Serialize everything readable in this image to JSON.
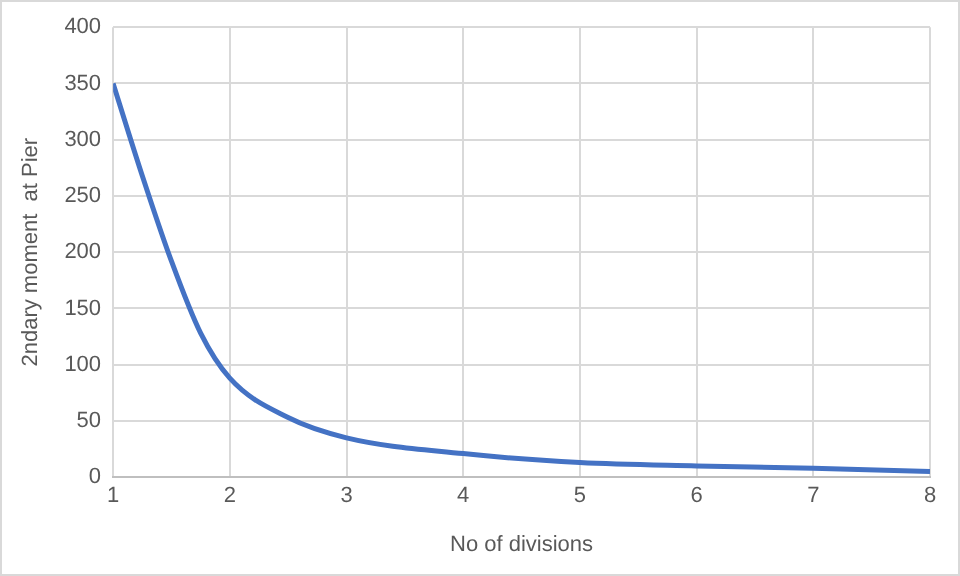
{
  "chart_data": {
    "type": "line",
    "xlabel": "No of divisions",
    "ylabel": "2ndary moment  at Pier",
    "x": [
      1,
      1.25,
      1.5,
      1.75,
      2,
      2.5,
      3,
      4,
      5,
      6,
      7,
      8
    ],
    "series": [
      {
        "color": "#4472c4",
        "values": [
          350,
          268,
          192,
          128,
          88,
          53,
          35,
          21,
          13,
          10,
          8,
          5
        ]
      }
    ],
    "xlim": [
      1,
      8
    ],
    "xticks": [
      1,
      2,
      3,
      4,
      5,
      6,
      7,
      8
    ],
    "ylim": [
      0,
      400
    ],
    "yticks": [
      0,
      50,
      100,
      150,
      200,
      250,
      300,
      350,
      400
    ],
    "grid": true,
    "legend": false,
    "marker": "none",
    "line_style": "solid"
  }
}
